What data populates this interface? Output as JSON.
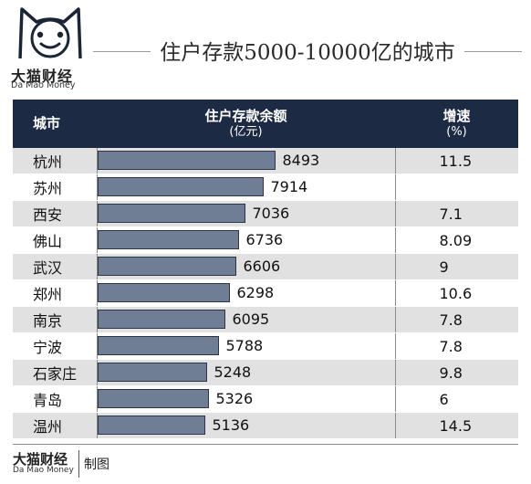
{
  "brand": {
    "name_cn": "大猫财经",
    "name_en": "Da Mao Money"
  },
  "title": "住户存款5000-10000亿的城市",
  "headers": {
    "city": "城市",
    "deposit": "住户存款余额",
    "deposit_unit": "(亿元)",
    "growth": "增速",
    "growth_unit": "(%)"
  },
  "footer": {
    "brand_cn": "大猫财经",
    "brand_en": "Da Mao Money",
    "made_by": "制图"
  },
  "colors": {
    "header_bg": "#1c2a43",
    "bar_fill": "#6f7e94",
    "row_stripe": "#e1e1e1"
  },
  "chart_data": {
    "type": "table",
    "title": "住户存款5000-10000亿的城市",
    "columns": [
      "城市",
      "住户存款余额(亿元)",
      "增速(%)"
    ],
    "rows": [
      {
        "city": "杭州",
        "deposit": 8493,
        "growth": "11.5"
      },
      {
        "city": "苏州",
        "deposit": 7914,
        "growth": ""
      },
      {
        "city": "西安",
        "deposit": 7036,
        "growth": "7.1"
      },
      {
        "city": "佛山",
        "deposit": 6736,
        "growth": "8.09"
      },
      {
        "city": "武汉",
        "deposit": 6606,
        "growth": "9"
      },
      {
        "city": "郑州",
        "deposit": 6298,
        "growth": "10.6"
      },
      {
        "city": "南京",
        "deposit": 6095,
        "growth": "7.8"
      },
      {
        "city": "宁波",
        "deposit": 5788,
        "growth": "7.8"
      },
      {
        "city": "石家庄",
        "deposit": 5248,
        "growth": "9.8"
      },
      {
        "city": "青岛",
        "deposit": 5326,
        "growth": "6"
      },
      {
        "city": "温州",
        "deposit": 5136,
        "growth": "14.5"
      }
    ]
  }
}
